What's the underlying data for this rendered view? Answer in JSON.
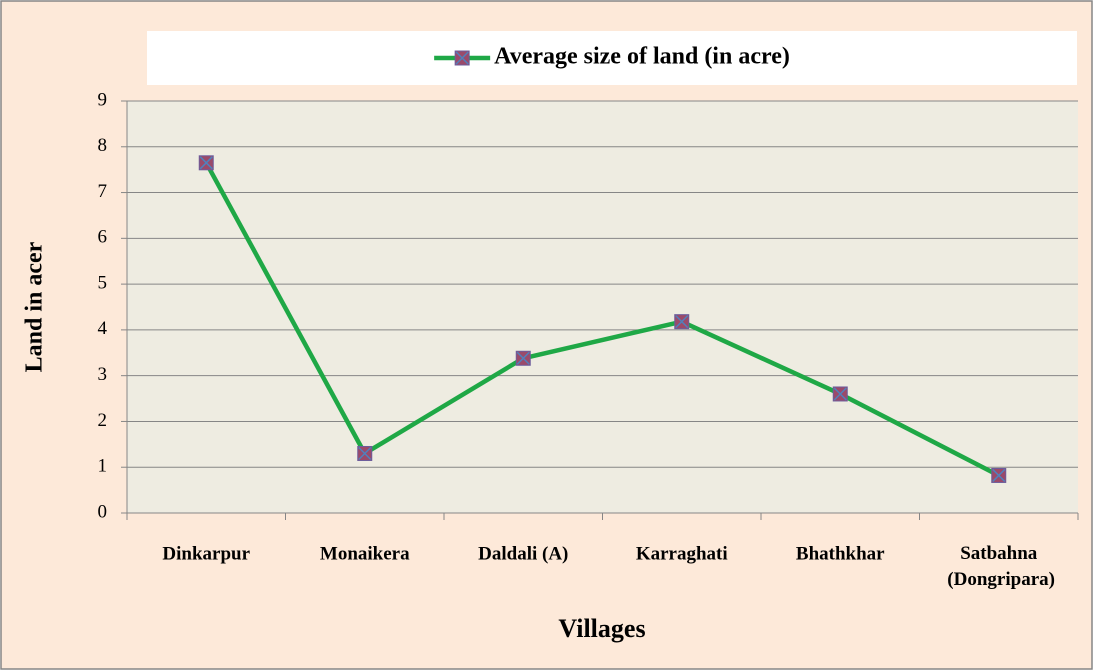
{
  "chart_data": {
    "type": "line",
    "categories": [
      "Dinkarpur",
      "Monaikera",
      "Daldali (A)",
      "Karraghati",
      "Bhathkhar",
      "Satbahna (Dongripara)"
    ],
    "series": [
      {
        "name": "Average size of land (in acre)",
        "color": "#1fa846",
        "values": [
          7.65,
          1.3,
          3.38,
          4.18,
          2.6,
          0.82
        ]
      }
    ],
    "ylim": [
      0,
      9
    ],
    "yticks": [
      0,
      1,
      2,
      3,
      4,
      5,
      6,
      7,
      8,
      9
    ],
    "grid": true,
    "y_label": "Land in acer",
    "x_label": "Villages",
    "legend": "top"
  }
}
